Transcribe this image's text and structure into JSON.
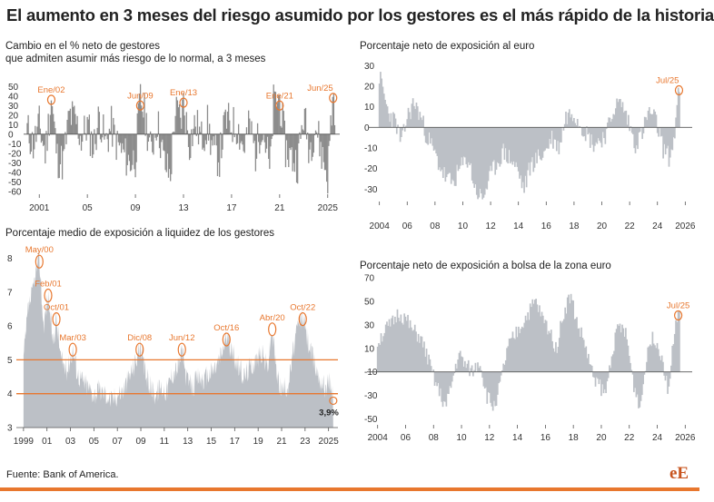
{
  "headline": "El aumento en 3 meses del riesgo asumido por los gestores es el más rápido de la historia",
  "source": "Fuente: Bank of America.",
  "logo": "eE",
  "colors": {
    "bar": "#8c8c8c",
    "area": "#bcc0c6",
    "highlight": "#e8772e",
    "grid": "#cfcfcf"
  },
  "chart_data": [
    {
      "id": "risk",
      "type": "bar",
      "title_lines": [
        "Cambio en el % neto de gestores",
        "que admiten asumir más riesgo de lo normal, a 3 meses"
      ],
      "x_ticks": [
        "2001",
        "05",
        "09",
        "13",
        "17",
        "21",
        "2025"
      ],
      "x_tick_pos": [
        2001,
        2005,
        2009,
        2013,
        2017,
        2021,
        2025
      ],
      "xlim": [
        2000,
        2026
      ],
      "yticks": [
        50,
        40,
        30,
        20,
        10,
        0,
        -10,
        -20,
        -30,
        -40,
        -50,
        -60
      ],
      "ylim": [
        -63,
        55
      ],
      "y_unit_label": "que",
      "keypoints": [
        [
          2000.0,
          5
        ],
        [
          2000.5,
          -12
        ],
        [
          2001.0,
          10
        ],
        [
          2001.5,
          -20
        ],
        [
          2002.0,
          38
        ],
        [
          2002.5,
          -25
        ],
        [
          2003.0,
          -30
        ],
        [
          2003.5,
          20
        ],
        [
          2004.0,
          15
        ],
        [
          2004.5,
          -5
        ],
        [
          2005.0,
          10
        ],
        [
          2005.5,
          -15
        ],
        [
          2006.0,
          20
        ],
        [
          2006.5,
          -10
        ],
        [
          2007.0,
          8
        ],
        [
          2007.5,
          -12
        ],
        [
          2008.0,
          -20
        ],
        [
          2008.5,
          -30
        ],
        [
          2009.0,
          -25
        ],
        [
          2009.4,
          38
        ],
        [
          2009.8,
          20
        ],
        [
          2010.3,
          -20
        ],
        [
          2010.8,
          15
        ],
        [
          2011.4,
          -30
        ],
        [
          2011.9,
          -45
        ],
        [
          2012.3,
          25
        ],
        [
          2012.8,
          15
        ],
        [
          2013.0,
          34
        ],
        [
          2013.5,
          -10
        ],
        [
          2014.0,
          12
        ],
        [
          2014.5,
          -5
        ],
        [
          2015.0,
          10
        ],
        [
          2015.5,
          -20
        ],
        [
          2016.0,
          -25
        ],
        [
          2016.5,
          15
        ],
        [
          2017.0,
          10
        ],
        [
          2017.5,
          8
        ],
        [
          2018.0,
          -15
        ],
        [
          2018.5,
          10
        ],
        [
          2019.0,
          -20
        ],
        [
          2019.5,
          12
        ],
        [
          2020.0,
          -20
        ],
        [
          2020.2,
          -45
        ],
        [
          2020.5,
          32
        ],
        [
          2021.0,
          38
        ],
        [
          2021.5,
          -15
        ],
        [
          2022.0,
          -25
        ],
        [
          2022.5,
          -30
        ],
        [
          2023.0,
          20
        ],
        [
          2023.5,
          -15
        ],
        [
          2024.0,
          10
        ],
        [
          2024.5,
          -20
        ],
        [
          2025.0,
          -45
        ],
        [
          2025.25,
          10
        ],
        [
          2025.45,
          40
        ],
        [
          2025.6,
          30
        ]
      ],
      "seed": 11,
      "annotations": [
        {
          "label": "Ene/02",
          "x": 2002.0,
          "y": 36
        },
        {
          "label": "Jun/09",
          "x": 2009.4,
          "y": 30
        },
        {
          "label": "Ene/13",
          "x": 2013.0,
          "y": 33
        },
        {
          "label": "Ene/21",
          "x": 2021.0,
          "y": 30
        },
        {
          "label": "Jun/25",
          "x": 2025.45,
          "y": 38
        }
      ]
    },
    {
      "id": "euro",
      "type": "bar",
      "title_lines": [
        "Porcentaje neto de exposición al euro"
      ],
      "x_ticks": [
        "2004",
        "06",
        "08",
        "10",
        "12",
        "14",
        "16",
        "18",
        "20",
        "22",
        "24",
        "2026"
      ],
      "x_tick_pos": [
        2004,
        2006,
        2008,
        2010,
        2012,
        2014,
        2016,
        2018,
        2020,
        2022,
        2024,
        2026
      ],
      "xlim": [
        2003.5,
        2026.5
      ],
      "yticks": [
        30,
        20,
        10,
        0,
        -10,
        -20,
        -30
      ],
      "ylim": [
        -36,
        31
      ],
      "keypoints": [
        [
          2004.0,
          25
        ],
        [
          2004.6,
          8
        ],
        [
          2005.2,
          2
        ],
        [
          2005.6,
          -8
        ],
        [
          2006.0,
          5
        ],
        [
          2006.5,
          12
        ],
        [
          2007.0,
          5
        ],
        [
          2007.3,
          -2
        ],
        [
          2007.8,
          -10
        ],
        [
          2008.3,
          -18
        ],
        [
          2008.8,
          -25
        ],
        [
          2009.3,
          -27
        ],
        [
          2009.8,
          -20
        ],
        [
          2010.4,
          -15
        ],
        [
          2010.9,
          -30
        ],
        [
          2011.4,
          -35
        ],
        [
          2011.9,
          -25
        ],
        [
          2012.4,
          -18
        ],
        [
          2012.9,
          -12
        ],
        [
          2013.4,
          -15
        ],
        [
          2013.9,
          -20
        ],
        [
          2014.4,
          -30
        ],
        [
          2014.9,
          -18
        ],
        [
          2015.4,
          -15
        ],
        [
          2015.9,
          -12
        ],
        [
          2016.4,
          -5
        ],
        [
          2016.9,
          -10
        ],
        [
          2017.4,
          5
        ],
        [
          2017.9,
          8
        ],
        [
          2018.4,
          3
        ],
        [
          2018.9,
          -3
        ],
        [
          2019.4,
          -8
        ],
        [
          2019.9,
          -6
        ],
        [
          2020.4,
          -2
        ],
        [
          2020.9,
          10
        ],
        [
          2021.4,
          12
        ],
        [
          2021.9,
          3
        ],
        [
          2022.4,
          -8
        ],
        [
          2022.9,
          -3
        ],
        [
          2023.4,
          8
        ],
        [
          2023.9,
          3
        ],
        [
          2024.4,
          -10
        ],
        [
          2024.9,
          -15
        ],
        [
          2025.2,
          -5
        ],
        [
          2025.45,
          12
        ],
        [
          2025.6,
          20
        ]
      ],
      "seed": 23,
      "annotations": [
        {
          "label": "Jul/25",
          "x": 2025.55,
          "y": 18
        }
      ]
    },
    {
      "id": "cash",
      "type": "area",
      "title_lines": [
        "Porcentaje medio de exposición a liquidez de los gestores"
      ],
      "x_ticks": [
        "1999",
        "01",
        "03",
        "05",
        "07",
        "09",
        "11",
        "13",
        "15",
        "17",
        "19",
        "21",
        "23",
        "2025"
      ],
      "x_tick_pos": [
        1999,
        2001,
        2003,
        2005,
        2007,
        2009,
        2011,
        2013,
        2015,
        2017,
        2019,
        2021,
        2023,
        2025
      ],
      "xlim": [
        1998.7,
        2025.8
      ],
      "yticks": [
        8,
        7,
        6,
        5,
        4,
        3
      ],
      "ylim": [
        3,
        8.2
      ],
      "reference_lines": [
        5,
        4
      ],
      "keypoints": [
        [
          1999.0,
          5.0
        ],
        [
          1999.4,
          6.5
        ],
        [
          1999.8,
          7.0
        ],
        [
          2000.0,
          7.5
        ],
        [
          2000.35,
          8.0
        ],
        [
          2000.7,
          6.0
        ],
        [
          2001.1,
          6.9
        ],
        [
          2001.5,
          5.5
        ],
        [
          2001.8,
          6.2
        ],
        [
          2002.2,
          5.0
        ],
        [
          2002.7,
          4.7
        ],
        [
          2003.2,
          5.3
        ],
        [
          2003.6,
          4.6
        ],
        [
          2004.0,
          4.4
        ],
        [
          2004.5,
          4.2
        ],
        [
          2005.0,
          4.0
        ],
        [
          2005.5,
          4.1
        ],
        [
          2006.0,
          4.0
        ],
        [
          2006.5,
          3.8
        ],
        [
          2007.0,
          4.0
        ],
        [
          2007.5,
          4.1
        ],
        [
          2008.0,
          4.5
        ],
        [
          2008.6,
          5.0
        ],
        [
          2008.9,
          5.4
        ],
        [
          2009.3,
          4.7
        ],
        [
          2009.7,
          4.3
        ],
        [
          2010.2,
          4.0
        ],
        [
          2010.7,
          4.2
        ],
        [
          2011.2,
          4.1
        ],
        [
          2011.7,
          4.6
        ],
        [
          2012.2,
          4.8
        ],
        [
          2012.5,
          5.3
        ],
        [
          2012.9,
          4.4
        ],
        [
          2013.4,
          4.2
        ],
        [
          2013.9,
          4.5
        ],
        [
          2014.4,
          4.4
        ],
        [
          2014.9,
          4.6
        ],
        [
          2015.4,
          4.8
        ],
        [
          2015.9,
          5.2
        ],
        [
          2016.3,
          5.7
        ],
        [
          2016.8,
          5.2
        ],
        [
          2017.3,
          4.8
        ],
        [
          2017.8,
          4.5
        ],
        [
          2018.3,
          4.8
        ],
        [
          2018.8,
          5.0
        ],
        [
          2019.3,
          5.2
        ],
        [
          2019.8,
          4.8
        ],
        [
          2020.2,
          5.9
        ],
        [
          2020.6,
          4.5
        ],
        [
          2021.1,
          4.1
        ],
        [
          2021.6,
          4.3
        ],
        [
          2022.0,
          5.3
        ],
        [
          2022.4,
          6.0
        ],
        [
          2022.8,
          6.3
        ],
        [
          2023.2,
          5.6
        ],
        [
          2023.7,
          5.0
        ],
        [
          2024.2,
          4.5
        ],
        [
          2024.7,
          4.2
        ],
        [
          2025.1,
          4.4
        ],
        [
          2025.4,
          3.9
        ]
      ],
      "seed": 37,
      "annotations": [
        {
          "label": "May/00",
          "x": 2000.35,
          "y": 7.9
        },
        {
          "label": "Feb/01",
          "x": 2001.1,
          "y": 6.9
        },
        {
          "label": "Oct/01",
          "x": 2001.8,
          "y": 6.2
        },
        {
          "label": "Mar/03",
          "x": 2003.2,
          "y": 5.3
        },
        {
          "label": "Dic/08",
          "x": 2008.9,
          "y": 5.3
        },
        {
          "label": "Jun/12",
          "x": 2012.5,
          "y": 5.3
        },
        {
          "label": "Oct/16",
          "x": 2016.3,
          "y": 5.6
        },
        {
          "label": "Abr/20",
          "x": 2020.2,
          "y": 5.9
        },
        {
          "label": "Oct/22",
          "x": 2022.8,
          "y": 6.2
        }
      ],
      "end_label": {
        "label": "3,9%",
        "x": 2025.4,
        "y": 3.9
      }
    },
    {
      "id": "stocks",
      "type": "bar",
      "title_lines": [
        "Porcentaje neto de exposición a bolsa de la zona euro"
      ],
      "x_ticks": [
        "2004",
        "06",
        "08",
        "10",
        "12",
        "14",
        "16",
        "18",
        "20",
        "22",
        "24",
        "2026"
      ],
      "x_tick_pos": [
        2004,
        2006,
        2008,
        2010,
        2012,
        2014,
        2016,
        2018,
        2020,
        2022,
        2024,
        2026
      ],
      "xlim": [
        2003.5,
        2026.5
      ],
      "yticks": [
        70,
        50,
        30,
        10,
        -10,
        -30,
        -50
      ],
      "ylim": [
        -55,
        70
      ],
      "baseline": -10,
      "keypoints": [
        [
          2004.0,
          15
        ],
        [
          2004.5,
          25
        ],
        [
          2005.0,
          30
        ],
        [
          2005.5,
          40
        ],
        [
          2006.0,
          35
        ],
        [
          2006.5,
          25
        ],
        [
          2007.0,
          20
        ],
        [
          2007.5,
          5
        ],
        [
          2008.0,
          -15
        ],
        [
          2008.5,
          -30
        ],
        [
          2008.9,
          -40
        ],
        [
          2009.3,
          -20
        ],
        [
          2009.8,
          5
        ],
        [
          2010.3,
          -5
        ],
        [
          2010.8,
          -10
        ],
        [
          2011.3,
          0
        ],
        [
          2011.8,
          -30
        ],
        [
          2012.3,
          -40
        ],
        [
          2012.8,
          -20
        ],
        [
          2013.3,
          10
        ],
        [
          2013.8,
          20
        ],
        [
          2014.3,
          30
        ],
        [
          2014.8,
          40
        ],
        [
          2015.3,
          50
        ],
        [
          2015.8,
          35
        ],
        [
          2016.3,
          25
        ],
        [
          2016.8,
          10
        ],
        [
          2017.3,
          40
        ],
        [
          2017.8,
          55
        ],
        [
          2018.3,
          30
        ],
        [
          2018.8,
          15
        ],
        [
          2019.3,
          -10
        ],
        [
          2019.8,
          -20
        ],
        [
          2020.3,
          -30
        ],
        [
          2020.8,
          10
        ],
        [
          2021.3,
          30
        ],
        [
          2021.8,
          20
        ],
        [
          2022.3,
          -20
        ],
        [
          2022.8,
          -40
        ],
        [
          2023.3,
          10
        ],
        [
          2023.8,
          20
        ],
        [
          2024.3,
          5
        ],
        [
          2024.8,
          -25
        ],
        [
          2025.2,
          20
        ],
        [
          2025.5,
          38
        ],
        [
          2025.6,
          35
        ]
      ],
      "seed": 51,
      "annotations": [
        {
          "label": "Jul/25",
          "x": 2025.5,
          "y": 38
        }
      ]
    }
  ]
}
